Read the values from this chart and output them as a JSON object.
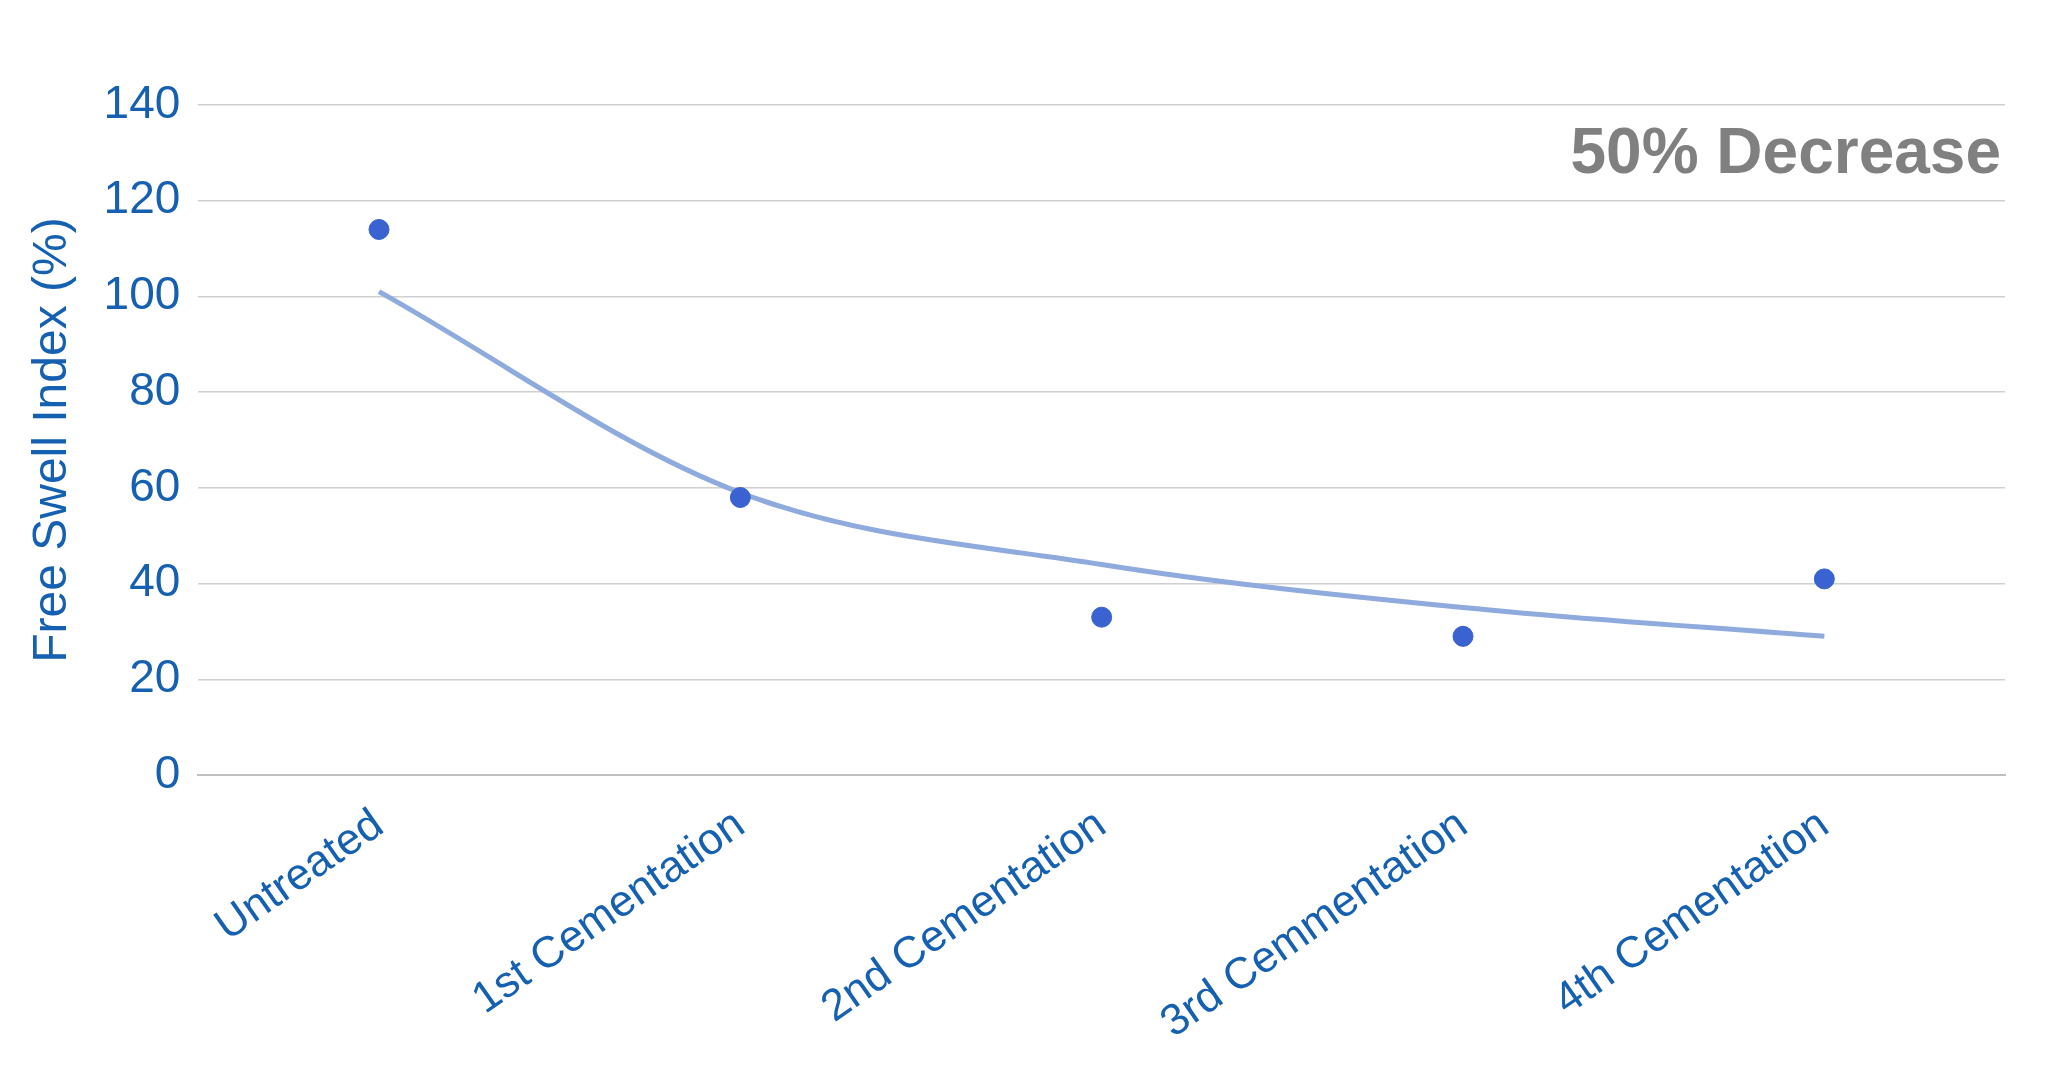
{
  "chart_data": {
    "type": "scatter",
    "ylabel": "Free Swell Index (%)",
    "categories": [
      "Untreated",
      "1st Cementation",
      "2nd Cementation",
      "3rd Cemmentation",
      "4th Cementation"
    ],
    "series": [
      {
        "color": "#3a62d0",
        "values": [
          114,
          58,
          33,
          29,
          41
        ],
        "marker": "circle"
      },
      {
        "type": "line",
        "color": "#8faadc",
        "values": [
          101,
          59,
          44,
          35,
          29
        ],
        "marker": "none"
      }
    ],
    "ylim": [
      0,
      140
    ],
    "yticks": [
      0,
      20,
      40,
      60,
      80,
      100,
      120,
      140
    ],
    "grid": "y",
    "legend": false,
    "annotations": [
      "50% Decrease"
    ]
  }
}
